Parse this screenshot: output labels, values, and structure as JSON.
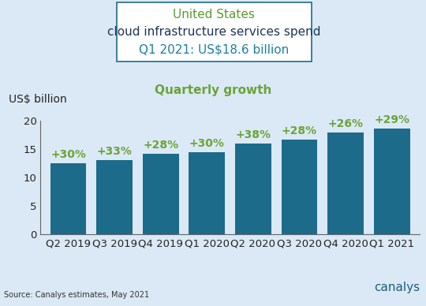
{
  "chart_data": {
    "type": "bar",
    "region": "United States",
    "title": "cloud infrastructure services spend",
    "subtitle": "Q1 2021: US$18.6 billion",
    "y_label": "US$ billion",
    "categories": [
      "Q2 2019",
      "Q3 2019",
      "Q4 2019",
      "Q1 2020",
      "Q2 2020",
      "Q3 2020",
      "Q4 2020",
      "Q1 2021"
    ],
    "values": [
      12.5,
      13.0,
      14.2,
      14.4,
      16.0,
      16.6,
      17.9,
      18.6
    ],
    "color": "#1c6b8a",
    "ylim": [
      0,
      20
    ],
    "yticks": [
      0,
      5,
      10,
      15,
      20
    ],
    "grid": false,
    "annotations": {
      "label": "Quarterly growth",
      "texts": [
        "+30%",
        "+33%",
        "+28%",
        "+30%",
        "+38%",
        "+28%",
        "+26%",
        "+29%"
      ]
    },
    "source": "Source: Canalys estimates, May 2021",
    "logo": "canalys"
  }
}
